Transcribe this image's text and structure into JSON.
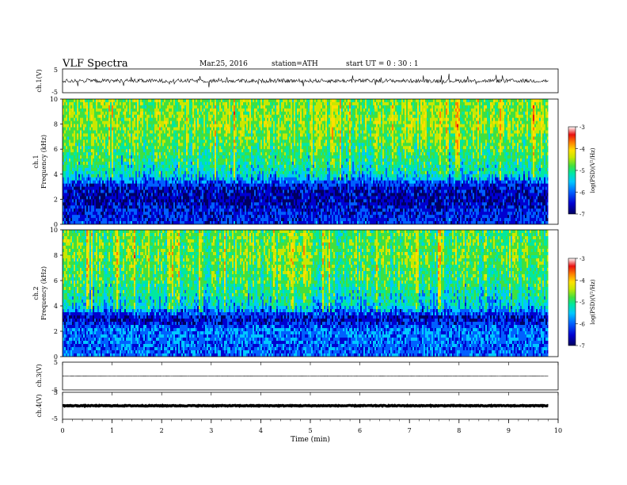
{
  "header": {
    "title": "VLF  Spectra",
    "date": "Mar.25, 2016",
    "station": "station=ATH",
    "start": "start  UT =    0  : 30 : 1"
  },
  "chart_data": [
    {
      "type": "line",
      "panel": "ch1-waveform",
      "ylabel": "ch.1(V)",
      "ylim": [
        -5,
        5
      ],
      "yticks": [
        "5",
        "-5"
      ],
      "xlim": [
        0,
        9.8
      ],
      "baseline": 0,
      "color": "#000000"
    },
    {
      "type": "heatmap",
      "panel": "ch1-spectrogram",
      "ylabel": "ch.1\nFrequency  (kHz)",
      "ylabel_line1": "ch.1",
      "ylabel_line2": "Frequency  (kHz)",
      "ylim": [
        0,
        10
      ],
      "yticks": [
        "0",
        "2",
        "4",
        "6",
        "8",
        "10"
      ],
      "xlim": [
        0,
        9.8
      ],
      "profile": [
        {
          "freq_khz": 0,
          "log_psd": -6.2
        },
        {
          "freq_khz": 1,
          "log_psd": -6.3
        },
        {
          "freq_khz": 2,
          "log_psd": -6.6
        },
        {
          "freq_khz": 3,
          "log_psd": -6.4
        },
        {
          "freq_khz": 4,
          "log_psd": -5.4
        },
        {
          "freq_khz": 6,
          "log_psd": -4.9
        },
        {
          "freq_khz": 8,
          "log_psd": -4.6
        },
        {
          "freq_khz": 10,
          "log_psd": -4.7
        }
      ],
      "colorbar": {
        "label": "log(PSD)(V²/Hz)",
        "range": [
          -7,
          -3
        ],
        "ticks": [
          "-3",
          "-4",
          "-5",
          "-6",
          "-7"
        ]
      }
    },
    {
      "type": "heatmap",
      "panel": "ch2-spectrogram",
      "ylabel_line1": "ch.2",
      "ylabel_line2": "Frequency  (kHz)",
      "ylim": [
        0,
        10
      ],
      "yticks": [
        "0",
        "2",
        "4",
        "6",
        "8",
        "10"
      ],
      "xlim": [
        0,
        9.8
      ],
      "profile": [
        {
          "freq_khz": 0,
          "log_psd": -6.0
        },
        {
          "freq_khz": 1,
          "log_psd": -6.0
        },
        {
          "freq_khz": 2,
          "log_psd": -5.9
        },
        {
          "freq_khz": 3,
          "log_psd": -6.5
        },
        {
          "freq_khz": 4,
          "log_psd": -5.5
        },
        {
          "freq_khz": 6,
          "log_psd": -5.0
        },
        {
          "freq_khz": 8,
          "log_psd": -4.8
        },
        {
          "freq_khz": 10,
          "log_psd": -4.9
        }
      ],
      "colorbar": {
        "label": "log(PSD)(V²/Hz)",
        "range": [
          -7,
          -3
        ],
        "ticks": [
          "-3",
          "-4",
          "-5",
          "-6",
          "-7"
        ]
      }
    },
    {
      "type": "line",
      "panel": "ch3-waveform",
      "ylabel": "ch.3(V)",
      "ylim": [
        -5,
        5
      ],
      "yticks": [
        "5",
        "-5"
      ],
      "xlim": [
        0,
        9.8
      ],
      "baseline": 0
    },
    {
      "type": "line",
      "panel": "ch4-waveform",
      "ylabel": "ch.4(V)",
      "ylim": [
        -5,
        5
      ],
      "yticks": [
        "5",
        "-5"
      ],
      "xlim": [
        0,
        9.8
      ],
      "baseline": 0
    }
  ],
  "xaxis": {
    "label": "Time  (min)",
    "ticks": [
      "0",
      "1",
      "2",
      "3",
      "4",
      "5",
      "6",
      "7",
      "8",
      "9",
      "10"
    ],
    "range": [
      0,
      10
    ]
  },
  "colormap": [
    "#000060",
    "#0000d0",
    "#0060ff",
    "#00c8ff",
    "#00e8a0",
    "#40e040",
    "#c8e800",
    "#ffe000",
    "#ff8000",
    "#e81010",
    "#ffffff"
  ]
}
